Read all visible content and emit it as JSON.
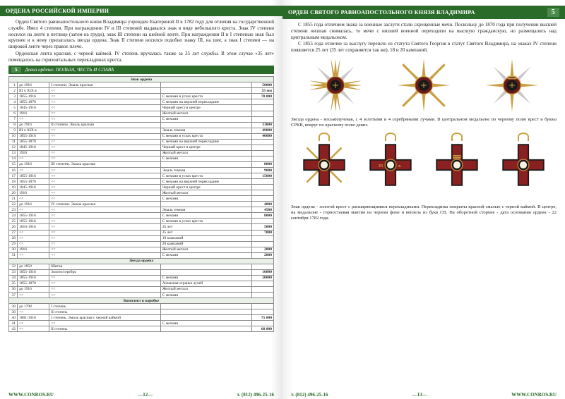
{
  "left": {
    "header": "ОРДЕНА РОССИЙСКОЙ ИМПЕРИИ",
    "para1": "Орден Святого равноапостольного князя Владимира учрежден Екатериной II в 1782 году для отличия на государственной службе. Имел 4 степени. При награждении IV и III степеней выдавался знак в виде небольшого креста. Знак IV степени носился на ленте в петлице (затем на груди), знак III степени на шейной ленте. При награждении II и I степенью знак был крупнее и к нему прилагалась звезда ордена. Знак II степени носился подобно знаку III, на шее, а знак I степени — на широкой ленте через правое плечо.",
    "para2": "Орденская лента красная, с черной каймой. IV степень вручалась также за 35 лет службы. В этом случае «35 лет» помещалось на горизонтальных перекладинах креста.",
    "motto_num": "5",
    "motto": "Девиз ордена: ПОЛЬЗА, ЧЕСТЬ И СЛАВА",
    "section1": "Знак ордена",
    "rows1": [
      [
        "1",
        "до 1916",
        "I степени. Эмаль красная",
        "50000"
      ],
      [
        "2",
        "III ч XIX в",
        "<<",
        "55 мм"
      ],
      [
        "3",
        "1855-1916",
        "<<",
        "С мечами в углах креста",
        "70 000"
      ],
      [
        "4",
        "1855-1870",
        "<<",
        "С мечами на верхней перекладине",
        ""
      ],
      [
        "5",
        "1845-1916",
        "<<",
        "Черный крест в центре",
        ""
      ],
      [
        "6",
        "1916",
        "<<",
        "Желтый металл",
        ""
      ],
      [
        "7",
        "<<",
        "<<",
        "С мечами",
        ""
      ]
    ],
    "rows2": [
      [
        "8",
        "до 1916",
        "II степени. Эмаль красная",
        "33000"
      ],
      [
        "9",
        "III ч XIX в",
        "<<",
        "Эмаль темная",
        "49000"
      ],
      [
        "10",
        "1855-1916",
        "<<",
        "С мечами в углах креста",
        "40000"
      ],
      [
        "11",
        "1855-1870",
        "<<",
        "С мечами на верхней перекладине",
        ""
      ],
      [
        "12",
        "1845-1916",
        "<<",
        "Черный крест в центре",
        ""
      ],
      [
        "13",
        "1916",
        "<<",
        "Желтый металл",
        ""
      ],
      [
        "14",
        "<<",
        "<<",
        "С мечами",
        ""
      ]
    ],
    "rows3": [
      [
        "15",
        "до 1916",
        "III степени. Эмаль красная",
        "8000"
      ],
      [
        "16",
        "<<",
        "<<",
        "Эмаль темная",
        "9000"
      ],
      [
        "17",
        "1855-1916",
        "<<",
        "С мечами в углах креста",
        "15000"
      ],
      [
        "18",
        "1855-1870",
        "<<",
        "С мечами на верхней перекладине",
        ""
      ],
      [
        "19",
        "1845-1916",
        "<<",
        "Черный крест в центре",
        ""
      ],
      [
        "20",
        "1916",
        "<<",
        "Желтый металл",
        ""
      ],
      [
        "21",
        "<<",
        "<<",
        "С мечами",
        ""
      ]
    ],
    "rows4": [
      [
        "22",
        "до 1916",
        "IV степени. Эмаль красная",
        "4000"
      ],
      [
        "23",
        "<<",
        "<<",
        "Эмаль темная",
        "4500"
      ],
      [
        "24",
        "1855-1916",
        "<<",
        "С мечами",
        "8000"
      ],
      [
        "25",
        "1855-1916",
        "<<",
        "С мечами в углах креста",
        ""
      ],
      [
        "26",
        "1816-1916",
        "<<",
        "35 лет",
        "5000"
      ],
      [
        "27",
        "<<",
        "<<",
        "25 лет",
        "7000"
      ],
      [
        "28",
        "<<",
        "<<",
        "18 кампаний",
        ""
      ],
      [
        "29",
        "<<",
        "<<",
        "20 кампаний",
        ""
      ],
      [
        "30",
        "1916",
        "<<",
        "Желтый металл",
        "2000"
      ],
      [
        "31",
        "<<",
        "<<",
        "С мечами",
        "2000"
      ]
    ],
    "section2": "Звезда ордена",
    "rows5": [
      [
        "32",
        "до 1850",
        "Шитая",
        ""
      ],
      [
        "33",
        "1855-1916",
        "Золото/серебро",
        "16000"
      ],
      [
        "34",
        "1855-1916",
        "<<",
        "С мечами",
        "20000"
      ],
      [
        "35",
        "1855-1870",
        "<<",
        "Алмазная огранка лучей",
        ""
      ],
      [
        "36",
        "до 1916",
        "<<",
        "Желтый металл",
        ""
      ],
      [
        "37",
        "<<",
        "<<",
        "С мечами",
        ""
      ]
    ],
    "section3": "Комплект в коробке",
    "rows6": [
      [
        "38",
        "до 1798",
        "I степень",
        ""
      ],
      [
        "39",
        "<<",
        "II степень",
        ""
      ],
      [
        "40",
        "1801-1916",
        "I степень. Эмаль красная с черной каймой",
        "75 000"
      ],
      [
        "41",
        "<<",
        "<<",
        "С мечами",
        ""
      ],
      [
        "42",
        "<<",
        "II степень",
        "60 000"
      ]
    ],
    "page_num": "—12—",
    "phone": "т. (812) 496-25-16",
    "url": "WWW.CONROS.RU"
  },
  "right": {
    "header": "ОРДЕН СВЯТОГО РАВНОАПОСТОЛЬНОГО КНЯЗЯ ВЛАДИМИРА",
    "pagenum": "5",
    "para1": "С 1855 года отличием знака за военные заслуги стали скрещенные мечи. Поскольку до 1870 года при получении высшей степени низшая снималась, то мечи с низшей военной переходили на высшую гражданскую, но размещались над центральным медальоном.",
    "para2": "С 1855 года отличие за выслугу перешло из статута Святого Георгия в статут Святого Владимира, на знаках IV степени появляется 25 лет (35 лет сохраняется так же), 18 и 20 кампаний.",
    "caption1": "Звезда ордена - восьмилучевая, с 4 золотыми и 4 серебряными лучами. В центральном медальоне по черному полю крест и буквы СРКВ, вокруг по красному полю девиз.",
    "caption2": "Знак ордена - золотой крест с расширяющимися перекладинами. Перекладины покрыты красной эмалью с черной каймой. В центре, на медальоне - горностаевая мантия на черном фоне и вензель из букв СВ. На оборотной стороне - дата основания ордена - 22 сентября 1782 года.",
    "page_num": "—13—",
    "phone": "т. (812) 496-25-16",
    "url": "WWW.CONROS.RU"
  },
  "colors": {
    "gold": "#caa040",
    "silver": "#c8c8c8",
    "darkred": "#6b1a1a",
    "enamel": "#8b2020",
    "black": "#1a1a1a"
  }
}
